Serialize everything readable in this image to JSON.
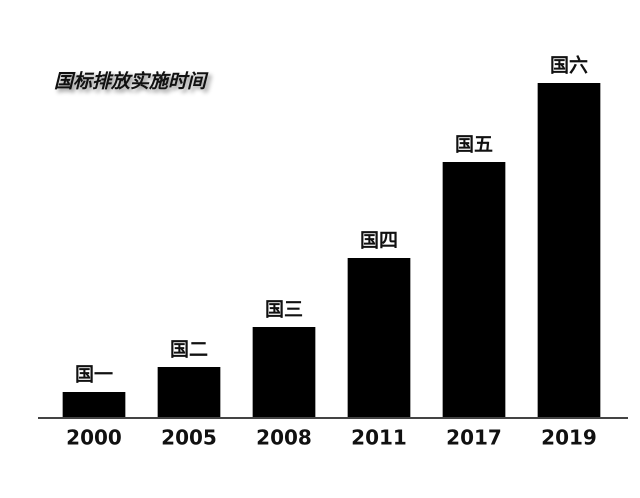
{
  "chart_data": {
    "type": "bar",
    "title": "国标排放实施时间",
    "categories": [
      "2000",
      "2005",
      "2008",
      "2011",
      "2017",
      "2019"
    ],
    "values": [
      26,
      51,
      91,
      160,
      256,
      335
    ],
    "bar_labels": [
      "国一",
      "国二",
      "国三",
      "国四",
      "国五",
      "国六"
    ],
    "color": "#000000",
    "ylim": [
      0,
      350
    ]
  }
}
